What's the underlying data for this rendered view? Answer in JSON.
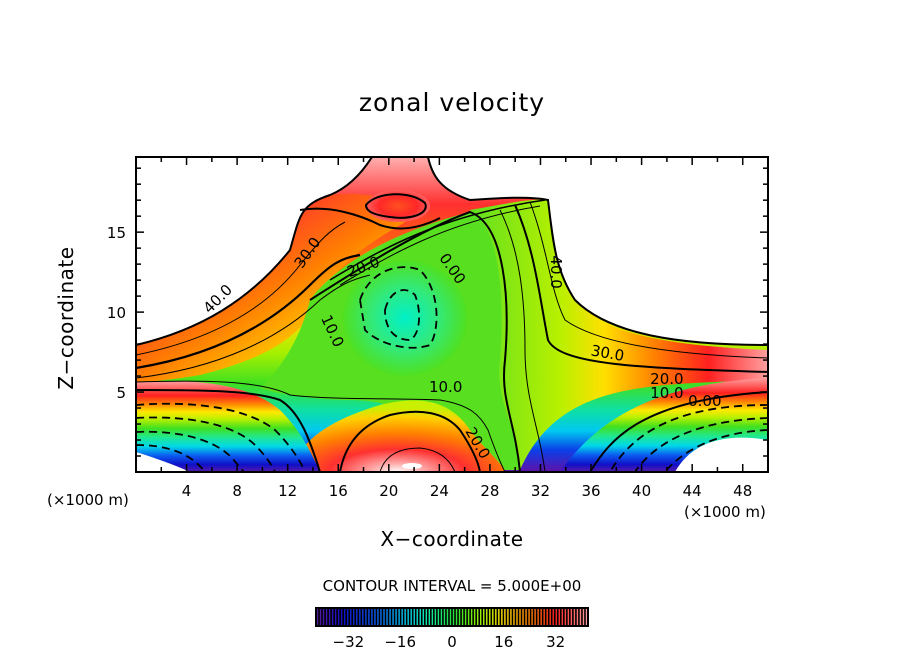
{
  "chart_data": {
    "type": "heatmap",
    "subtype": "filled-contour",
    "title": "zonal velocity",
    "xlabel": "X−coordinate",
    "ylabel": "Z−coordinate",
    "x_unit_label": "(×1000 m)",
    "y_unit_label": "(×1000 m)",
    "xlim": [
      0,
      50
    ],
    "ylim": [
      0,
      19.7
    ],
    "x_ticks": [
      4,
      8,
      12,
      16,
      20,
      24,
      28,
      32,
      36,
      40,
      44,
      48
    ],
    "x_tick_labels": [
      "4",
      "8",
      "12",
      "16",
      "20",
      "24",
      "28",
      "32",
      "36",
      "40",
      "44",
      "48"
    ],
    "y_ticks": [
      5,
      10,
      15
    ],
    "y_tick_labels": [
      "5",
      "10",
      "15"
    ],
    "contour_interval_text": "CONTOUR INTERVAL = 5.000E+00",
    "contour_interval": 5,
    "negative_contours": "dashed",
    "contour_labels": [
      {
        "text": "40.0",
        "x": 6.5,
        "y": 10.8,
        "angle": -45
      },
      {
        "text": "30.0",
        "x": 13.6,
        "y": 13.7,
        "angle": -55
      },
      {
        "text": "20.0",
        "x": 18.0,
        "y": 12.8,
        "angle": -20
      },
      {
        "text": "0.00",
        "x": 25.0,
        "y": 12.7,
        "angle": 55
      },
      {
        "text": "10.0",
        "x": 15.5,
        "y": 8.8,
        "angle": 65
      },
      {
        "text": "40.0",
        "x": 33.2,
        "y": 12.5,
        "angle": 90
      },
      {
        "text": "30.0",
        "x": 37.3,
        "y": 7.4,
        "angle": 10
      },
      {
        "text": "20.0",
        "x": 42.0,
        "y": 5.8,
        "angle": 0
      },
      {
        "text": "10.0",
        "x": 42.0,
        "y": 4.9,
        "angle": 0
      },
      {
        "text": "0.00",
        "x": 45.0,
        "y": 4.4,
        "angle": 0
      },
      {
        "text": "10.0",
        "x": 24.5,
        "y": 5.3,
        "angle": 0
      },
      {
        "text": "20.0",
        "x": 27.0,
        "y": 1.8,
        "angle": 60
      }
    ],
    "colorbar": {
      "ticks": [
        -32,
        -16,
        0,
        16,
        32
      ],
      "tick_labels": [
        "−32",
        "−16",
        "0",
        "16",
        "32"
      ],
      "range": [
        -42,
        42
      ],
      "orientation": "horizontal",
      "placement": "bottom"
    },
    "regions": [
      {
        "name": "left-lower-jet-negative",
        "min_value": -40,
        "location": "bottom-left"
      },
      {
        "name": "right-lower-jet-negative",
        "min_value": -40,
        "location": "bottom-right"
      },
      {
        "name": "central-core-negative",
        "min_value": -5,
        "location": "center x~22 z~10"
      },
      {
        "name": "upper-max",
        "max_value": 35,
        "location": "top x~22 z~17"
      },
      {
        "name": "lower-max",
        "max_value": 40,
        "location": "bottom x~22 z~0.5"
      }
    ]
  }
}
